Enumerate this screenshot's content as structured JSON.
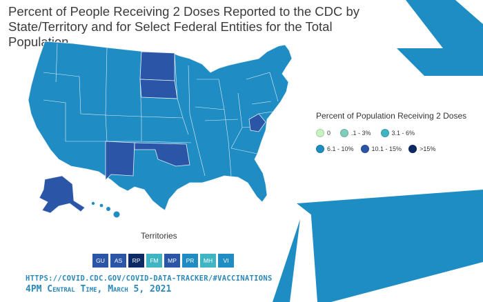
{
  "title": "Percent of People Receiving 2 Doses Reported to the CDC by State/Territory and for Select Federal Entities for the Total Population",
  "legend": {
    "title": "Percent of Population Receiving 2 Doses",
    "items": [
      {
        "label": "0",
        "color": "#c9f2c0"
      },
      {
        "label": ".1 - 3%",
        "color": "#7fcdbb"
      },
      {
        "label": "3.1 - 6%",
        "color": "#3fb5c4"
      },
      {
        "label": "6.1 - 10%",
        "color": "#1f8cc3"
      },
      {
        "label": "10.1 - 15%",
        "color": "#2b56a8"
      },
      {
        "label": ">15%",
        "color": "#0c2a63"
      }
    ]
  },
  "map": {
    "base_category": "6.1 - 10%",
    "highlighted_states": [
      {
        "state": "North Dakota",
        "category": "10.1 - 15%"
      },
      {
        "state": "South Dakota",
        "category": "10.1 - 15%"
      },
      {
        "state": "New Mexico",
        "category": "10.1 - 15%"
      },
      {
        "state": "Oklahoma",
        "category": "10.1 - 15%"
      },
      {
        "state": "West Virginia",
        "category": "10.1 - 15%"
      },
      {
        "state": "Alaska",
        "category": "10.1 - 15%"
      }
    ],
    "colors": {
      "base": "#1f8cc3",
      "highlight": "#2b56a8",
      "border": "#e6f0f7"
    }
  },
  "territories": {
    "label": "Territories",
    "items": [
      {
        "code": "GU",
        "color": "#2b56a8"
      },
      {
        "code": "AS",
        "color": "#2b56a8"
      },
      {
        "code": "RP",
        "color": "#0c2a63"
      },
      {
        "code": "FM",
        "color": "#3fb5c4"
      },
      {
        "code": "MP",
        "color": "#2b56a8"
      },
      {
        "code": "PR",
        "color": "#1f8cc3"
      },
      {
        "code": "MH",
        "color": "#3fb5c4"
      },
      {
        "code": "VI",
        "color": "#1f8cc3"
      }
    ]
  },
  "footer": {
    "url": "HTTPS://COVID.CDC.GOV/COVID-DATA-TRACKER/#VACCINATIONS",
    "time": "4PM Central Time, March 5, 2021"
  },
  "decor_color": "#1e8dc4"
}
